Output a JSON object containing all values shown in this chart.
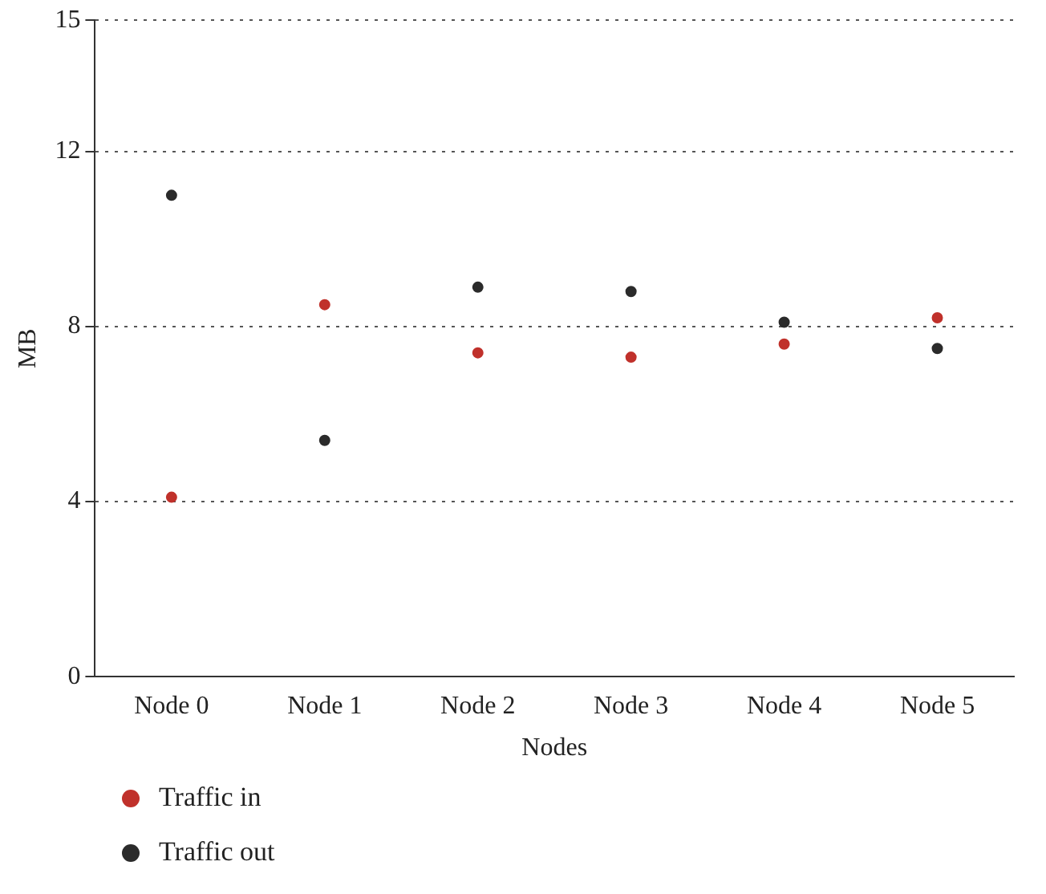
{
  "chart_data": {
    "type": "scatter",
    "xlabel": "Nodes",
    "ylabel": "MB",
    "categories": [
      "Node 0",
      "Node 1",
      "Node 2",
      "Node 3",
      "Node 4",
      "Node 5"
    ],
    "series": [
      {
        "name": "Traffic in",
        "color": "#c0312b",
        "values": [
          4.1,
          8.5,
          7.4,
          7.3,
          7.6,
          8.2
        ]
      },
      {
        "name": "Traffic out",
        "color": "#2b2b2b",
        "values": [
          11.0,
          5.4,
          8.9,
          8.8,
          8.1,
          7.5
        ]
      }
    ],
    "ylim": [
      0,
      15
    ],
    "yticks": [
      0,
      4,
      8,
      12,
      15
    ],
    "grid": "y",
    "legend": "bottom left",
    "marker": "circle"
  }
}
